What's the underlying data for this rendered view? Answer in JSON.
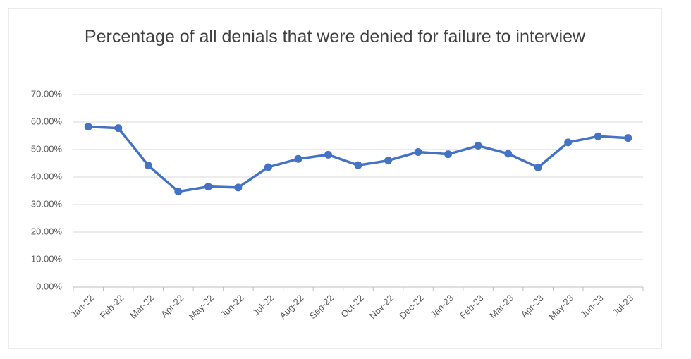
{
  "chart_data": {
    "type": "line",
    "title": "Percentage of all denials that were denied for failure to interview",
    "categories": [
      "Jan-22",
      "Feb-22",
      "Mar-22",
      "Apr-22",
      "May-22",
      "Jun-22",
      "Jul-22",
      "Aug-22",
      "Sep-22",
      "Oct-22",
      "Nov-22",
      "Dec-22",
      "Jan-23",
      "Feb-23",
      "Mar-23",
      "Apr-23",
      "May-23",
      "Jun-23",
      "Jul-23"
    ],
    "series": [
      {
        "color": "#4472c4",
        "values": [
          58.3,
          57.8,
          44.2,
          34.7,
          36.5,
          36.2,
          43.6,
          46.6,
          48.1,
          44.3,
          46.0,
          49.1,
          48.3,
          51.4,
          48.5,
          43.5,
          52.6,
          54.8,
          54.2
        ]
      }
    ],
    "ylim": [
      0,
      70
    ],
    "yticks": [
      {
        "value": 0,
        "label": "0.00%"
      },
      {
        "value": 10,
        "label": "10.00%"
      },
      {
        "value": 20,
        "label": "20.00%"
      },
      {
        "value": 30,
        "label": "30.00%"
      },
      {
        "value": 40,
        "label": "40.00%"
      },
      {
        "value": 50,
        "label": "50.00%"
      },
      {
        "value": 60,
        "label": "60.00%"
      },
      {
        "value": 70,
        "label": "70.00%"
      }
    ],
    "grid": true
  }
}
